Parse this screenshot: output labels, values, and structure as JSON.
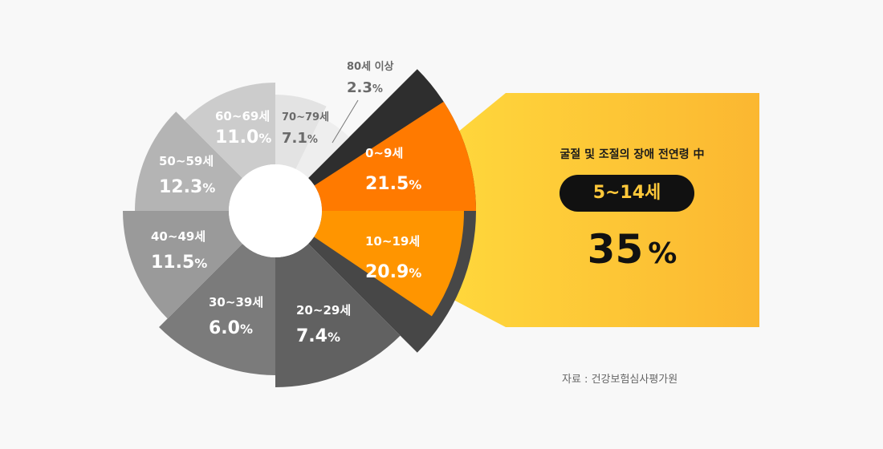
{
  "chart_data": {
    "type": "pie",
    "subtype": "rose",
    "slices": [
      {
        "name": "0~9세",
        "value": 21.5,
        "color": "#2e2e2e",
        "highlight_color": "#ff7a00"
      },
      {
        "name": "10~19세",
        "value": 20.9,
        "color": "#474747",
        "highlight_color": "#ff9500"
      },
      {
        "name": "20~29세",
        "value": 7.4,
        "color": "#616161"
      },
      {
        "name": "30~39세",
        "value": 6.0,
        "color": "#7b7b7b"
      },
      {
        "name": "40~49세",
        "value": 11.5,
        "color": "#9a9a9a"
      },
      {
        "name": "50~59세",
        "value": 12.3,
        "color": "#b4b4b4"
      },
      {
        "name": "60~69세",
        "value": 11.0,
        "color": "#cccccc"
      },
      {
        "name": "70~79세",
        "value": 7.1,
        "color": "#e3e3e3"
      },
      {
        "name": "80세 이상",
        "value": 2.3,
        "color": "#eeeeee"
      }
    ],
    "unit": "%"
  },
  "callout": {
    "title": "굴절 및 조절의 장애 전연령 中",
    "highlight": "5~14세",
    "value": "35",
    "unit": "%",
    "colors": {
      "from": "#ffd83c",
      "to": "#fbb731"
    }
  },
  "source": "자료 : 건강보험심사평가원"
}
